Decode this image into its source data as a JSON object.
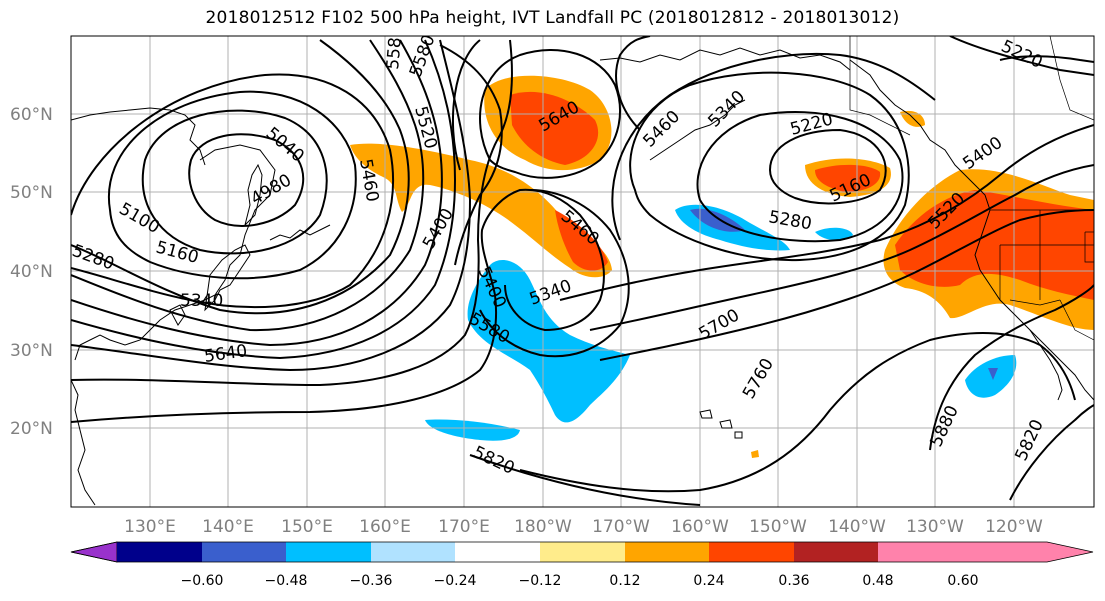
{
  "title": "2018012512 F102 500 hPa height, IVT Landfall PC (2018012812 - 2018013012)",
  "lat_labels": [
    "60°N",
    "50°N",
    "40°N",
    "30°N",
    "20°N"
  ],
  "lon_labels": [
    "130°E",
    "140°E",
    "150°E",
    "160°E",
    "170°E",
    "180°W",
    "170°W",
    "160°W",
    "150°W",
    "140°W",
    "130°W",
    "120°W"
  ],
  "colorbar": {
    "colors": [
      "#9932cc",
      "#00008b",
      "#3a5fcd",
      "#00bfff",
      "#b0e2ff",
      "#ffffff",
      "#ffec8b",
      "#ffa500",
      "#ff4500",
      "#b22222",
      "#ff82ab"
    ],
    "ticks": [
      "−0.60",
      "−0.48",
      "−0.36",
      "−0.24",
      "−0.12",
      "0.12",
      "0.24",
      "0.36",
      "0.48",
      "0.60"
    ]
  },
  "contour_labels": [
    "5580",
    "5520",
    "5640",
    "5460",
    "5340",
    "5220",
    "5220",
    "5040",
    "4980",
    "5100",
    "5160",
    "5280",
    "5340",
    "5640",
    "5460",
    "5580",
    "5400",
    "5460",
    "5400",
    "5340",
    "5580",
    "5160",
    "5280",
    "5400",
    "5520",
    "5700",
    "5760",
    "5820",
    "5880",
    "5820"
  ]
}
